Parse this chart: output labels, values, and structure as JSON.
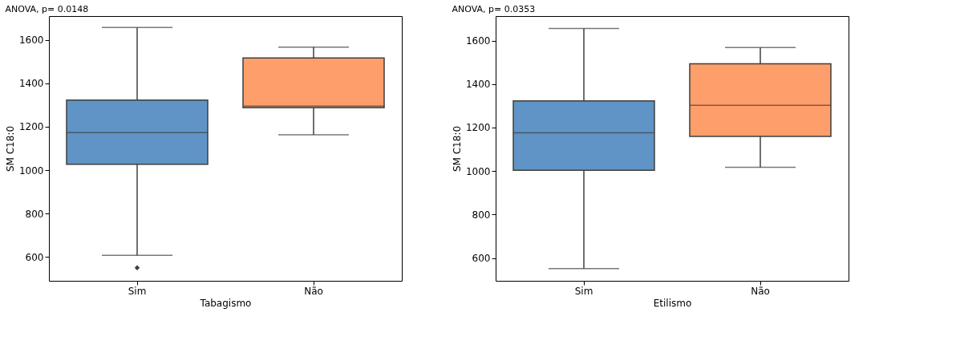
{
  "chart_data": [
    {
      "type": "box",
      "title": "ANOVA, p= 0.0148",
      "xlabel": "Tabagismo",
      "ylabel": "SM C18:0",
      "categories": [
        "Sim",
        "Não"
      ],
      "colors": [
        "#6094c6",
        "#fe9f6b"
      ],
      "boxes": [
        {
          "low": 607,
          "q1": 1027,
          "median": 1173,
          "q3": 1323,
          "high": 1657,
          "outliers": [
            550
          ]
        },
        {
          "low": 1163,
          "q1": 1288,
          "median": 1295,
          "q3": 1517,
          "high": 1567
        }
      ],
      "ylim": [
        490,
        1710
      ],
      "yticks": [
        600,
        800,
        1000,
        1200,
        1400,
        1600
      ],
      "grid": false
    },
    {
      "type": "box",
      "title": "ANOVA,  p= 0.0353",
      "xlabel": "Etilismo",
      "ylabel": "SM C18:0",
      "categories": [
        "Sim",
        "Não"
      ],
      "colors": [
        "#6094c6",
        "#fe9f6b"
      ],
      "boxes": [
        {
          "low": 551,
          "q1": 1003,
          "median": 1176,
          "q3": 1323,
          "high": 1656
        },
        {
          "low": 1017,
          "q1": 1159,
          "median": 1302,
          "q3": 1493,
          "high": 1568
        }
      ],
      "ylim": [
        495,
        1713
      ],
      "yticks": [
        600,
        800,
        1000,
        1200,
        1400,
        1600
      ],
      "grid": false
    }
  ]
}
